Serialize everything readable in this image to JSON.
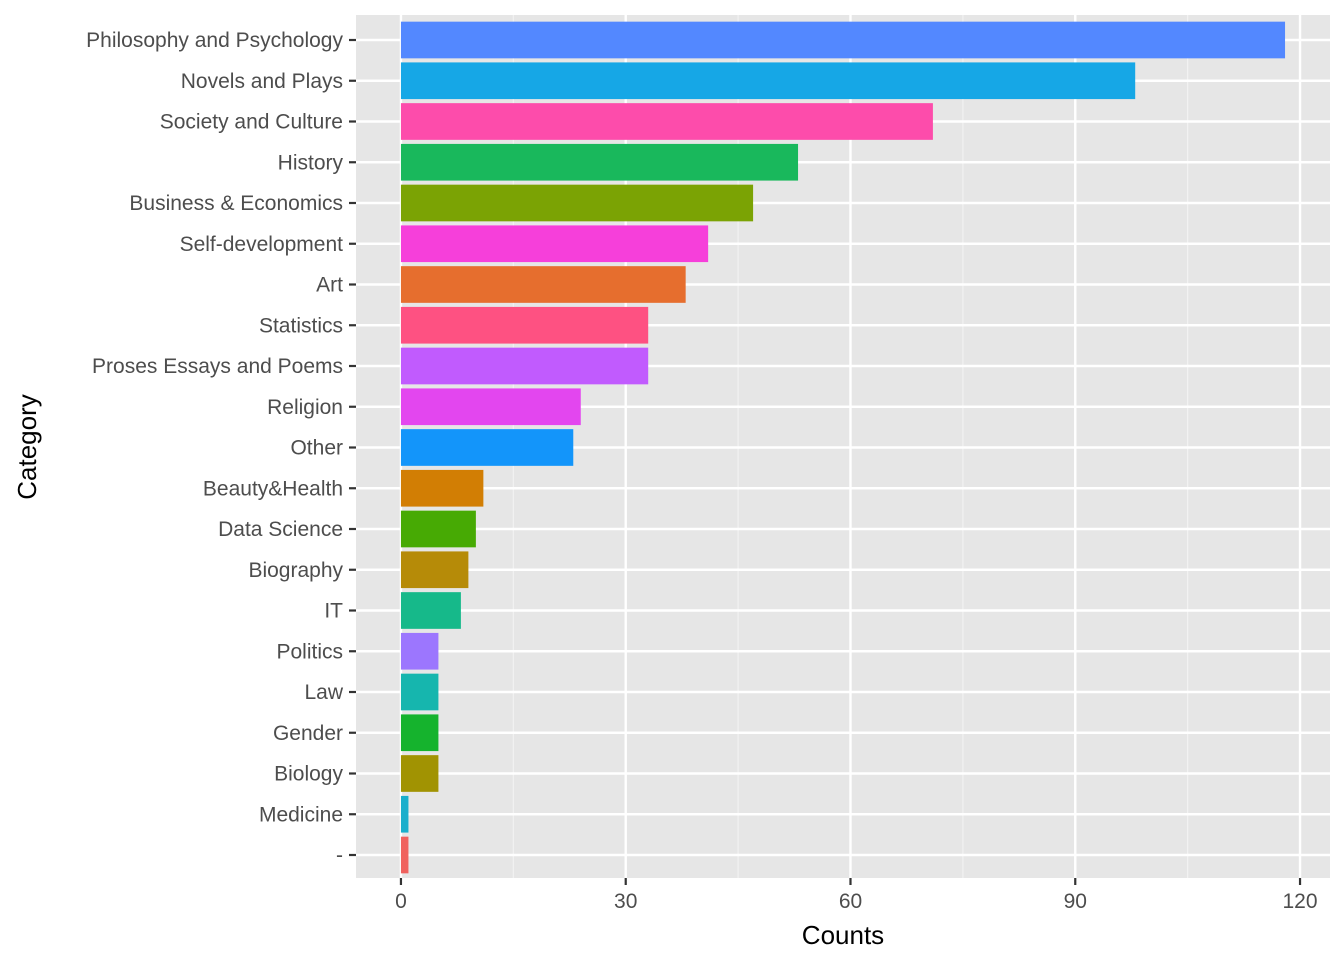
{
  "chart_data": {
    "type": "bar",
    "orientation": "horizontal",
    "title": "",
    "xlabel": "Counts",
    "ylabel": "Category",
    "xlim": [
      -6,
      124
    ],
    "x_ticks": [
      0,
      30,
      60,
      90,
      120
    ],
    "grid": true,
    "legend": "none",
    "categories": [
      "Philosophy and Psychology",
      "Novels and Plays",
      "Society and Culture",
      "History",
      "Business & Economics",
      "Self-development",
      "Art",
      "Statistics",
      "Proses Essays and Poems",
      "Religion",
      "Other",
      "Beauty&Health",
      "Data Science",
      "Biography",
      "IT",
      "Politics",
      "Law",
      "Gender",
      "Biology",
      "Medicine",
      "-"
    ],
    "values": [
      118,
      98,
      71,
      53,
      47,
      41,
      38,
      33,
      33,
      24,
      23,
      11,
      10,
      9,
      8,
      5,
      5,
      5,
      5,
      1,
      1
    ],
    "colors": [
      "#5388FF",
      "#16A7E6",
      "#FD4CAB",
      "#19B85C",
      "#7BA304",
      "#F63FDA",
      "#E66E2E",
      "#FE5182",
      "#C15BFE",
      "#E346EF",
      "#1395FA",
      "#D27E04",
      "#47AA04",
      "#B68B08",
      "#16B98A",
      "#9C76FE",
      "#16B6AE",
      "#15B32D",
      "#A19302",
      "#1AAFCC",
      "#F0625E"
    ]
  }
}
